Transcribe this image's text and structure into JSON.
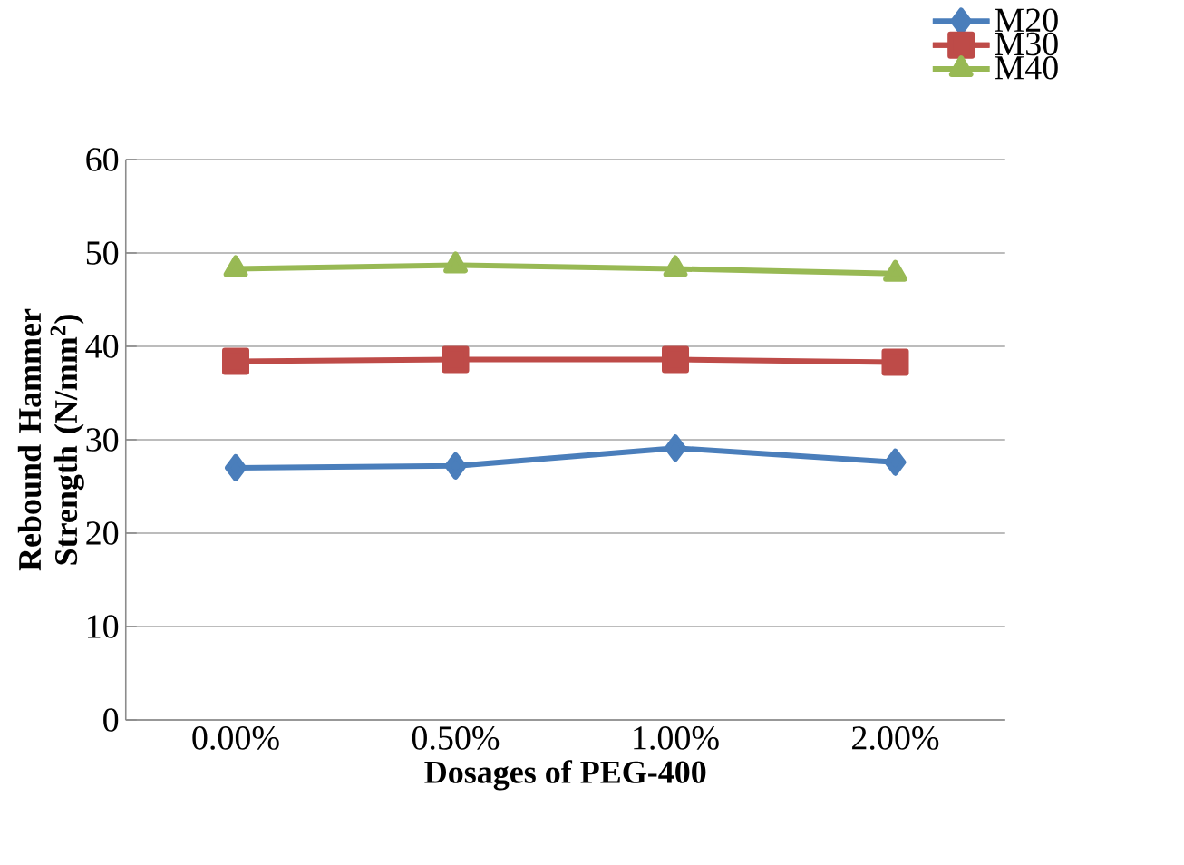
{
  "chart_data": {
    "type": "line",
    "xlabel": "Dosages of PEG-400",
    "ylabel": "Rebound Hammer Strength (N/mm$^{2}$)",
    "categories": [
      "0.00%",
      "0.50%",
      "1.00%",
      "2.00%"
    ],
    "series": [
      {
        "name": "M20",
        "color": "#4a7ebb",
        "marker": "diamond",
        "values": [
          27.0,
          27.2,
          29.1,
          27.6
        ]
      },
      {
        "name": "M30",
        "color": "#be4b48",
        "marker": "square",
        "values": [
          38.4,
          38.6,
          38.6,
          38.3
        ]
      },
      {
        "name": "M40",
        "color": "#98b954",
        "marker": "triangle",
        "values": [
          48.3,
          48.7,
          48.3,
          47.8
        ]
      }
    ],
    "ylim": [
      0,
      60
    ],
    "yticks": [
      0,
      10,
      20,
      30,
      40,
      50,
      60
    ],
    "grid": "y",
    "legend": "top right"
  }
}
